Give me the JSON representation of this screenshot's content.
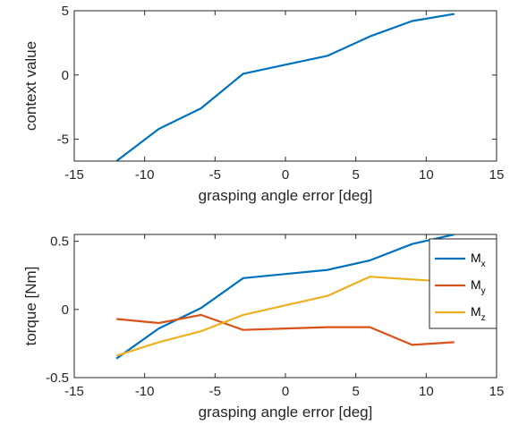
{
  "chart_data": [
    {
      "type": "line",
      "title": "",
      "xlabel": "grasping angle error [deg]",
      "ylabel": "context value",
      "xlim": [
        -15,
        15
      ],
      "ylim": [
        -6.7,
        5
      ],
      "xticks": [
        "-15",
        "-10",
        "-5",
        "0",
        "5",
        "10",
        "15"
      ],
      "yticks": [
        "-5",
        "0",
        "5"
      ],
      "grid": false,
      "series": [
        {
          "color": "#0072BD",
          "x": [
            -12,
            -9,
            -6,
            -3,
            0,
            3,
            6,
            9,
            12
          ],
          "y": [
            -6.7,
            -4.2,
            -2.6,
            0.1,
            0.8,
            1.5,
            3.0,
            4.2,
            4.75
          ]
        }
      ]
    },
    {
      "type": "line",
      "title": "",
      "xlabel": "grasping angle error [deg]",
      "ylabel": "torque [Nm]",
      "xlim": [
        -15,
        15
      ],
      "ylim": [
        -0.5,
        0.55
      ],
      "xticks": [
        "-15",
        "-10",
        "-5",
        "0",
        "5",
        "10",
        "15"
      ],
      "yticks": [
        "-0.5",
        "0",
        "0.5"
      ],
      "grid": false,
      "legend": "top-right",
      "series": [
        {
          "name": "M",
          "sub": "x",
          "color": "#0072BD",
          "x": [
            -12,
            -9,
            -6,
            -3,
            0,
            3,
            6,
            9,
            12
          ],
          "y": [
            -0.36,
            -0.14,
            0.01,
            0.23,
            0.26,
            0.29,
            0.36,
            0.48,
            0.55
          ]
        },
        {
          "name": "M",
          "sub": "y",
          "color": "#D95319",
          "x": [
            -12,
            -9,
            -6,
            -3,
            0,
            3,
            6,
            9,
            12
          ],
          "y": [
            -0.07,
            -0.1,
            -0.04,
            -0.15,
            -0.14,
            -0.13,
            -0.13,
            -0.26,
            -0.24
          ]
        },
        {
          "name": "M",
          "sub": "z",
          "color": "#EDB120",
          "x": [
            -12,
            -9,
            -6,
            -3,
            0,
            3,
            6,
            9,
            12
          ],
          "y": [
            -0.34,
            -0.24,
            -0.16,
            -0.04,
            0.03,
            0.1,
            0.24,
            0.22,
            0.2
          ]
        }
      ]
    }
  ]
}
